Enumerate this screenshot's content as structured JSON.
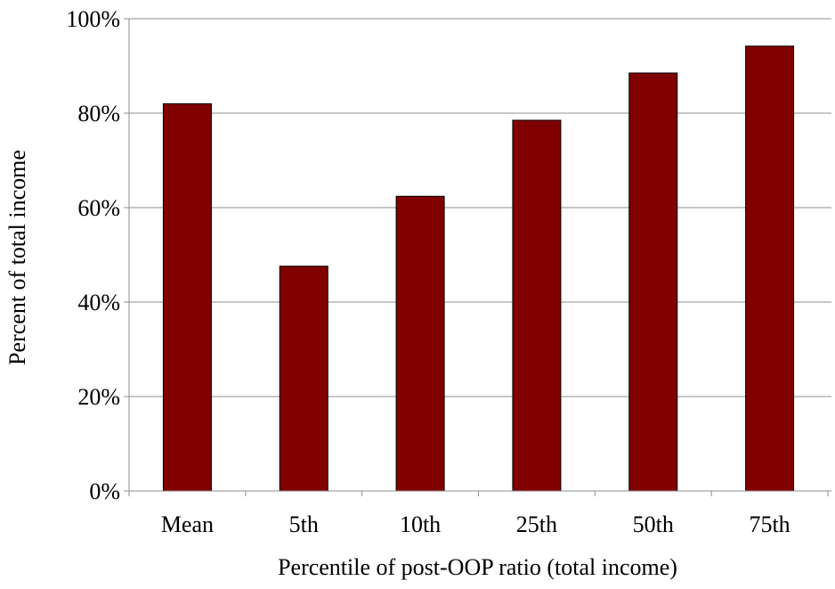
{
  "chart_data": {
    "type": "bar",
    "categories": [
      "Mean",
      "5th",
      "10th",
      "25th",
      "50th",
      "75th"
    ],
    "series": [
      {
        "values": [
          82,
          47.6,
          62.4,
          78.5,
          88.5,
          94.2
        ],
        "color": "#800000"
      }
    ],
    "title": "",
    "xlabel": "Percentile of post-OOP ratio (total income)",
    "ylabel": "Percent of total income",
    "ylim": [
      0,
      100
    ],
    "yticks": [
      0,
      20,
      40,
      60,
      80,
      100
    ],
    "ytick_labels": [
      "0%",
      "20%",
      "40%",
      "60%",
      "80%",
      "100%"
    ],
    "grid": true,
    "grid_color": "#8c8c8c",
    "legend": "none"
  }
}
